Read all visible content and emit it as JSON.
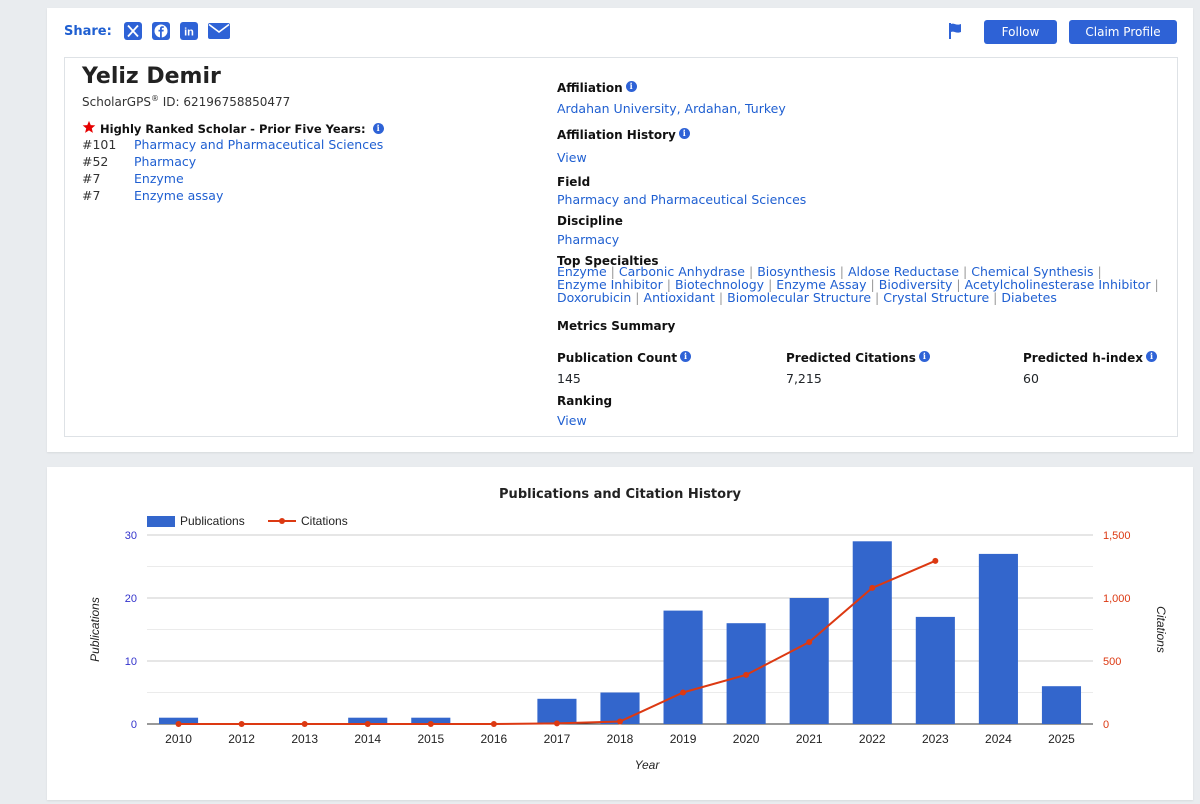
{
  "share": {
    "label": "Share:"
  },
  "buttons": {
    "follow": "Follow",
    "claim": "Claim Profile"
  },
  "profile": {
    "name": "Yeliz Demir",
    "id_prefix": "ScholarGPS",
    "id_reg": "®",
    "id_text": " ID: 62196758850477",
    "highly_ranked_label": "Highly Ranked Scholar - Prior Five Years:",
    "rankings": [
      {
        "rank": "#101",
        "field": "Pharmacy and Pharmaceutical Sciences"
      },
      {
        "rank": "#52",
        "field": "Pharmacy"
      },
      {
        "rank": "#7",
        "field": "Enzyme"
      },
      {
        "rank": "#7",
        "field": "Enzyme assay"
      }
    ],
    "affiliation_label": "Affiliation",
    "affiliation": "Ardahan University, Ardahan, Turkey",
    "affiliation_history_label": "Affiliation History",
    "affiliation_history_link": "View",
    "field_label": "Field",
    "field": "Pharmacy and Pharmaceutical Sciences",
    "discipline_label": "Discipline",
    "discipline": "Pharmacy",
    "top_specialties_label": "Top Specialties",
    "specialty_lines": [
      [
        "Enzyme",
        "Carbonic Anhydrase",
        "Biosynthesis",
        "Aldose Reductase",
        "Chemical Synthesis"
      ],
      [
        "Enzyme Inhibitor",
        "Biotechnology",
        "Enzyme Assay",
        "Biodiversity",
        "Acetylcholinesterase Inhibitor"
      ],
      [
        "Doxorubicin",
        "Antioxidant",
        "Biomolecular Structure",
        "Crystal Structure",
        "Diabetes"
      ]
    ],
    "metrics_summary_label": "Metrics Summary",
    "publication_count_label": "Publication Count",
    "publication_count": "145",
    "predicted_citations_label": "Predicted Citations",
    "predicted_citations": "7,215",
    "predicted_hindex_label": "Predicted h-index",
    "predicted_hindex": "60",
    "ranking_label": "Ranking",
    "ranking_link": "View"
  },
  "colors": {
    "accent": "#2e62d6",
    "bar": "#3366cc",
    "line": "#dc3912",
    "star": "#e60000"
  },
  "chart_data": {
    "type": "bar",
    "title": "Publications and Citation History",
    "xlabel": "Year",
    "ylabel": "Publications",
    "y2label": "Citations",
    "categories": [
      "2010",
      "2012",
      "2013",
      "2014",
      "2015",
      "2016",
      "2017",
      "2018",
      "2019",
      "2020",
      "2021",
      "2022",
      "2023",
      "2024",
      "2025"
    ],
    "ylim": [
      0,
      30
    ],
    "y2lim": [
      0,
      1500
    ],
    "yticks": [
      "0",
      "10",
      "20",
      "30"
    ],
    "y2ticks": [
      "0",
      "500",
      "1,000",
      "1,500"
    ],
    "legend_position": "top-left",
    "series": [
      {
        "name": "Publications",
        "type": "bar",
        "axis": "left",
        "values": [
          1,
          0,
          0,
          1,
          1,
          0,
          4,
          5,
          18,
          16,
          20,
          29,
          17,
          27,
          6
        ]
      },
      {
        "name": "Citations",
        "type": "line",
        "axis": "right",
        "values": [
          0,
          0,
          0,
          0,
          0,
          0,
          5,
          20,
          250,
          390,
          650,
          1080,
          1295,
          null,
          null
        ]
      }
    ],
    "grid": true
  }
}
